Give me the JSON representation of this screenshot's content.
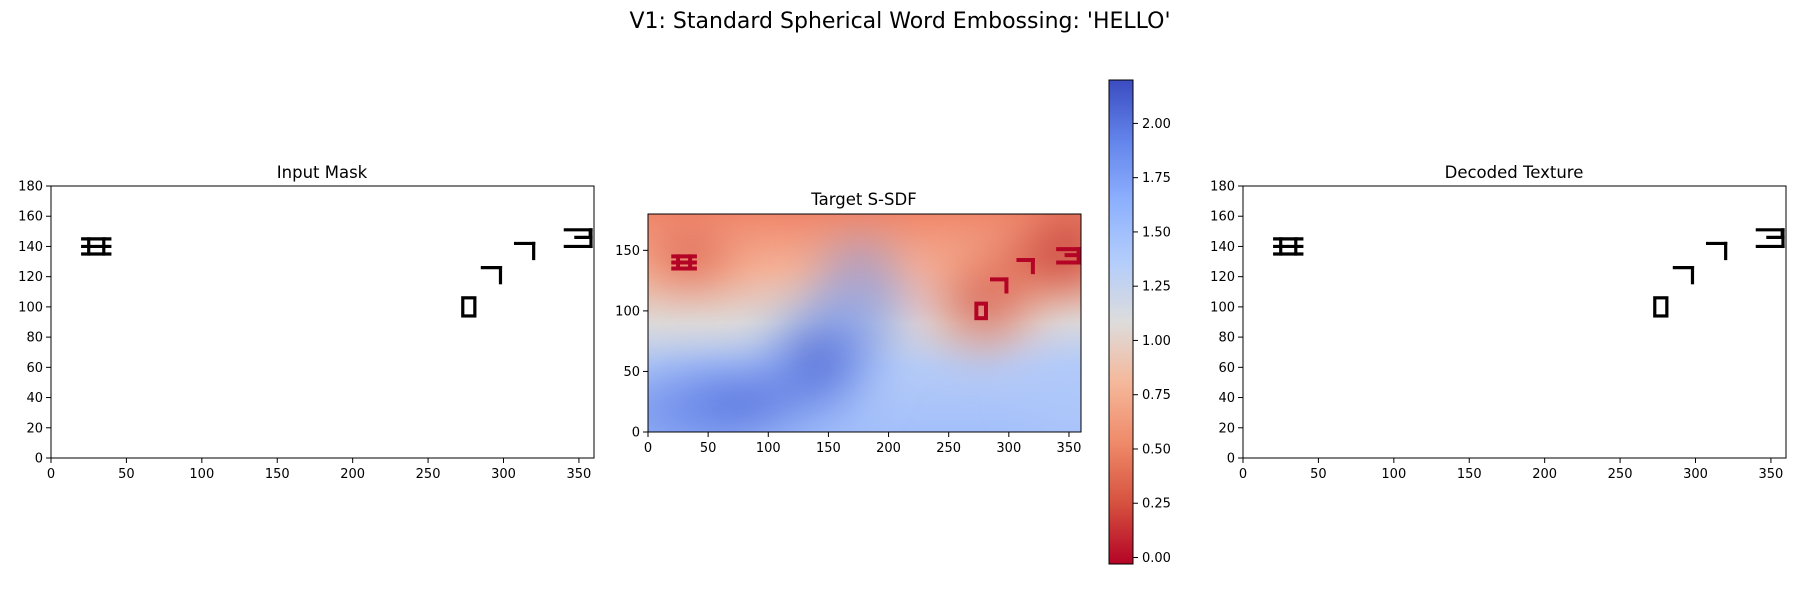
{
  "figure": {
    "title": "V1: Standard Spherical Word Embossing: 'HELLO'"
  },
  "chart_data": [
    {
      "type": "heatmap",
      "title": "Input Mask",
      "xlim": [
        0,
        360
      ],
      "ylim": [
        0,
        180
      ],
      "xticks": [
        0,
        50,
        100,
        150,
        200,
        250,
        300,
        350
      ],
      "yticks": [
        0,
        20,
        40,
        60,
        80,
        100,
        120,
        140,
        160,
        180
      ],
      "colormap": "gray_r",
      "glyphs": [
        {
          "x": 30,
          "y": 140,
          "shape": "H-rotated"
        },
        {
          "x": 277,
          "y": 100,
          "shape": "O"
        },
        {
          "x": 292,
          "y": 122,
          "shape": "L-rotated"
        },
        {
          "x": 314,
          "y": 138,
          "shape": "L-rotated"
        },
        {
          "x": 350,
          "y": 145,
          "shape": "E-rotated"
        },
        {
          "x": 359,
          "y": 148,
          "shape": "wrap-fragment"
        }
      ]
    },
    {
      "type": "heatmap",
      "title": "Target S-SDF",
      "xlim": [
        0,
        360
      ],
      "ylim": [
        0,
        180
      ],
      "xticks": [
        0,
        50,
        100,
        150,
        200,
        250,
        300,
        350
      ],
      "yticks": [
        0,
        50,
        100,
        150
      ],
      "colormap": "coolwarm_r",
      "vmin": -0.03,
      "vmax": 2.2,
      "colorbar": {
        "ticks": [
          0.0,
          0.25,
          0.5,
          0.75,
          1.0,
          1.25,
          1.5,
          1.75,
          2.0
        ],
        "tick_labels": [
          "0.00",
          "0.25",
          "0.50",
          "0.75",
          "1.00",
          "1.25",
          "1.50",
          "1.75",
          "2.00"
        ]
      },
      "glyphs": [
        {
          "x": 30,
          "y": 140,
          "shape": "H-rotated"
        },
        {
          "x": 277,
          "y": 100,
          "shape": "O"
        },
        {
          "x": 292,
          "y": 122,
          "shape": "L-rotated"
        },
        {
          "x": 314,
          "y": 138,
          "shape": "L-rotated"
        },
        {
          "x": 350,
          "y": 145,
          "shape": "E-rotated"
        }
      ]
    },
    {
      "type": "heatmap",
      "title": "Decoded Texture",
      "xlim": [
        0,
        360
      ],
      "ylim": [
        0,
        180
      ],
      "xticks": [
        0,
        50,
        100,
        150,
        200,
        250,
        300,
        350
      ],
      "yticks": [
        0,
        20,
        40,
        60,
        80,
        100,
        120,
        140,
        160,
        180
      ],
      "colormap": "gray_r",
      "glyphs": [
        {
          "x": 30,
          "y": 140,
          "shape": "H-rotated"
        },
        {
          "x": 277,
          "y": 100,
          "shape": "O"
        },
        {
          "x": 292,
          "y": 122,
          "shape": "L-rotated"
        },
        {
          "x": 314,
          "y": 138,
          "shape": "L-rotated"
        },
        {
          "x": 350,
          "y": 145,
          "shape": "E-rotated"
        },
        {
          "x": 359,
          "y": 148,
          "shape": "wrap-fragment"
        }
      ]
    }
  ]
}
